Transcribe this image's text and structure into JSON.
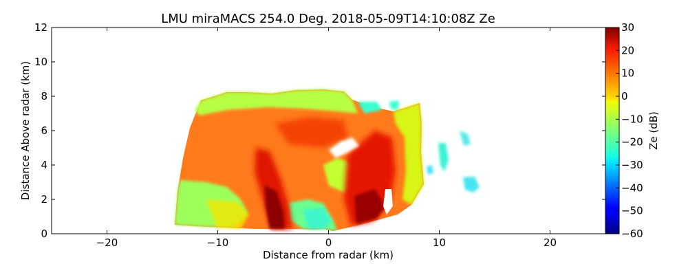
{
  "chart_data": {
    "type": "heatmap",
    "title": "LMU miraMACS 254.0 Deg. 2018-05-09T14:10:08Z  Ze",
    "xlabel": "Distance from radar (km)",
    "ylabel": "Distance Above radar  (km)",
    "xlim": [
      -25,
      25
    ],
    "ylim": [
      0,
      12
    ],
    "xticks": [
      "−20",
      "−10",
      "0",
      "10",
      "20"
    ],
    "xtick_values": [
      -20,
      -10,
      0,
      10,
      20
    ],
    "yticks": [
      "0",
      "2",
      "4",
      "6",
      "8",
      "10",
      "12"
    ],
    "ytick_values": [
      0,
      2,
      4,
      6,
      8,
      10,
      12
    ],
    "colorbar": {
      "label": "Ze (dB)",
      "range": [
        -60,
        30
      ],
      "colormap": "jet",
      "ticks": [
        "−60",
        "−50",
        "−40",
        "−30",
        "−20",
        "−10",
        "0",
        "10",
        "20",
        "30"
      ],
      "tick_values": [
        -60,
        -50,
        -40,
        -30,
        -20,
        -10,
        0,
        10,
        20,
        30
      ]
    },
    "grid": false,
    "regions": [
      {
        "desc": "main echo body",
        "x_range": [
          -13.8,
          8.5
        ],
        "y_range": [
          0.4,
          8.4
        ],
        "ze_dB": 15
      },
      {
        "desc": "echo top edge",
        "x_range": [
          -11.5,
          1.5
        ],
        "y_range": [
          7.5,
          8.4
        ],
        "ze_dB": -12
      },
      {
        "desc": "low-level left region",
        "x_range": [
          -13.8,
          -9
        ],
        "y_range": [
          0.4,
          3.0
        ],
        "ze_dB": -15
      },
      {
        "desc": "fall streak left",
        "x_range": [
          -7,
          -4
        ],
        "y_range": [
          0.3,
          4.5
        ],
        "ze_dB": 24
      },
      {
        "desc": "fall streak right",
        "x_range": [
          1.5,
          5.5
        ],
        "y_range": [
          0.3,
          4.5
        ],
        "ze_dB": 24
      },
      {
        "desc": "gap region near radar",
        "x_range": [
          -3.5,
          0.5
        ],
        "y_range": [
          0.3,
          2.5
        ],
        "ze_dB": -20
      },
      {
        "desc": "isolated cells right",
        "x_range": [
          10.0,
          13.5
        ],
        "y_range": [
          2.4,
          5.8
        ],
        "ze_dB": -20
      }
    ]
  }
}
